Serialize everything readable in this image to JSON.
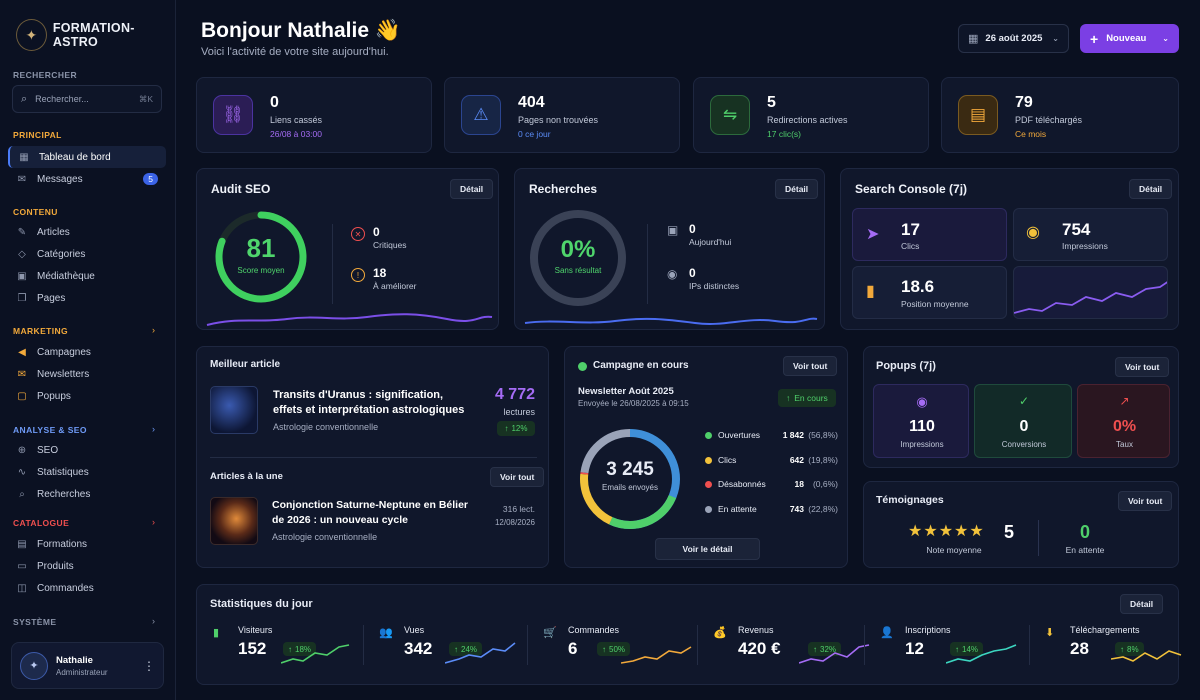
{
  "brand": {
    "name": "FORMATION-ASTRO"
  },
  "sidebar": {
    "search_label": "RECHERCHER",
    "search_placeholder": "Rechercher...",
    "search_shortcut": "⌘K",
    "sections": {
      "principal": "PRINCIPAL",
      "contenu": "CONTENU",
      "marketing": "MARKETING",
      "analyse": "ANALYSE & SEO",
      "catalogue": "CATALOGUE",
      "systeme": "SYSTÈME"
    },
    "items": {
      "dashboard": "Tableau de bord",
      "messages": "Messages",
      "messages_badge": "5",
      "articles": "Articles",
      "categories": "Catégories",
      "media": "Médiathèque",
      "pages": "Pages",
      "campagnes": "Campagnes",
      "newsletters": "Newsletters",
      "popups": "Popups",
      "seo": "SEO",
      "statistiques": "Statistiques",
      "recherches": "Recherches",
      "formations": "Formations",
      "produits": "Produits",
      "commandes": "Commandes"
    },
    "user": {
      "name": "Nathalie",
      "role": "Administrateur"
    }
  },
  "header": {
    "greeting": "Bonjour Nathalie 👋",
    "subtitle": "Voici l'activité de votre site aujourd'hui.",
    "date": "26 août 2025",
    "new_button": "Nouveau"
  },
  "stats": [
    {
      "value": "0",
      "label": "Liens cassés",
      "sub": "26/08 à 03:00",
      "color": "#a56cf5"
    },
    {
      "value": "404",
      "label": "Pages non trouvées",
      "sub": "0 ce jour",
      "color": "#5b8cf7"
    },
    {
      "value": "5",
      "label": "Redirections actives",
      "sub": "17 clic(s)",
      "color": "#4fcf6a"
    },
    {
      "value": "79",
      "label": "PDF téléchargés",
      "sub": "Ce mois",
      "color": "#f2a93b"
    }
  ],
  "audit": {
    "title": "Audit SEO",
    "detail": "Détail",
    "score": "81",
    "score_label": "Score moyen",
    "score_pct": 0.81,
    "critiques": "0",
    "critiques_label": "Critiques",
    "ameliorer": "18",
    "ameliorer_label": "À améliorer"
  },
  "recherches": {
    "title": "Recherches",
    "detail": "Détail",
    "pct": "0%",
    "pct_label": "Sans résultat",
    "today": "0",
    "today_label": "Aujourd'hui",
    "ips": "0",
    "ips_label": "IPs distinctes"
  },
  "console": {
    "title": "Search Console (7j)",
    "detail": "Détail",
    "clics": "17",
    "clics_label": "Clics",
    "impressions": "754",
    "impressions_label": "Impressions",
    "position": "18.6",
    "position_label": "Position moyenne"
  },
  "best": {
    "title": "Meilleur article",
    "headline": "Transits d'Uranus : signification, effets et interprétation astrologiques",
    "category": "Astrologie conventionnelle",
    "reads": "4 772",
    "reads_label": "lectures",
    "trend": "12%"
  },
  "une": {
    "title": "Articles à la une",
    "button": "Voir tout",
    "headline": "Conjonction Saturne-Neptune en Bélier de 2026 : un nouveau cycle",
    "category": "Astrologie conventionnelle",
    "reads": "316 lect.",
    "date": "12/08/2026"
  },
  "campaign": {
    "title": "Campagne en cours",
    "button": "Voir tout",
    "name": "Newsletter Août 2025",
    "sent": "Envoyée le 26/08/2025 à 09:15",
    "status": "En cours",
    "total": "3 245",
    "total_label": "Emails envoyés",
    "rows": [
      {
        "label": "Ouvertures",
        "value": "1 842",
        "pct": "(56,8%)",
        "color": "#4fcf6a"
      },
      {
        "label": "Clics",
        "value": "642",
        "pct": "(19,8%)",
        "color": "#f2c23b"
      },
      {
        "label": "Désabonnés",
        "value": "18",
        "pct": "(0,6%)",
        "color": "#ef4f4f"
      },
      {
        "label": "En attente",
        "value": "743",
        "pct": "(22,8%)",
        "color": "#9aa3b8"
      }
    ],
    "detail_button": "Voir le détail"
  },
  "popups": {
    "title": "Popups (7j)",
    "button": "Voir tout",
    "impressions": "110",
    "impressions_label": "Impressions",
    "conversions": "0",
    "conversions_label": "Conversions",
    "taux": "0%",
    "taux_label": "Taux"
  },
  "temoignages": {
    "title": "Témoignages",
    "button": "Voir tout",
    "stars": "★★★★★",
    "note": "5",
    "note_label": "Note moyenne",
    "pending": "0",
    "pending_label": "En attente"
  },
  "daily": {
    "title": "Statistiques du jour",
    "detail": "Détail",
    "items": [
      {
        "label": "Visiteurs",
        "value": "152",
        "trend": "18%",
        "color": "#4fcf6a",
        "icon": "▮"
      },
      {
        "label": "Vues",
        "value": "342",
        "trend": "24%",
        "color": "#5b8cf7",
        "icon": "👥"
      },
      {
        "label": "Commandes",
        "value": "6",
        "trend": "50%",
        "color": "#f2a93b",
        "icon": "🛒"
      },
      {
        "label": "Revenus",
        "value": "420 €",
        "trend": "32%",
        "color": "#a56cf5",
        "icon": "💰"
      },
      {
        "label": "Inscriptions",
        "value": "12",
        "trend": "14%",
        "color": "#3cd6c0",
        "icon": "👤"
      },
      {
        "label": "Téléchargements",
        "value": "28",
        "trend": "8%",
        "color": "#f2c23b",
        "icon": "⬇"
      }
    ]
  }
}
